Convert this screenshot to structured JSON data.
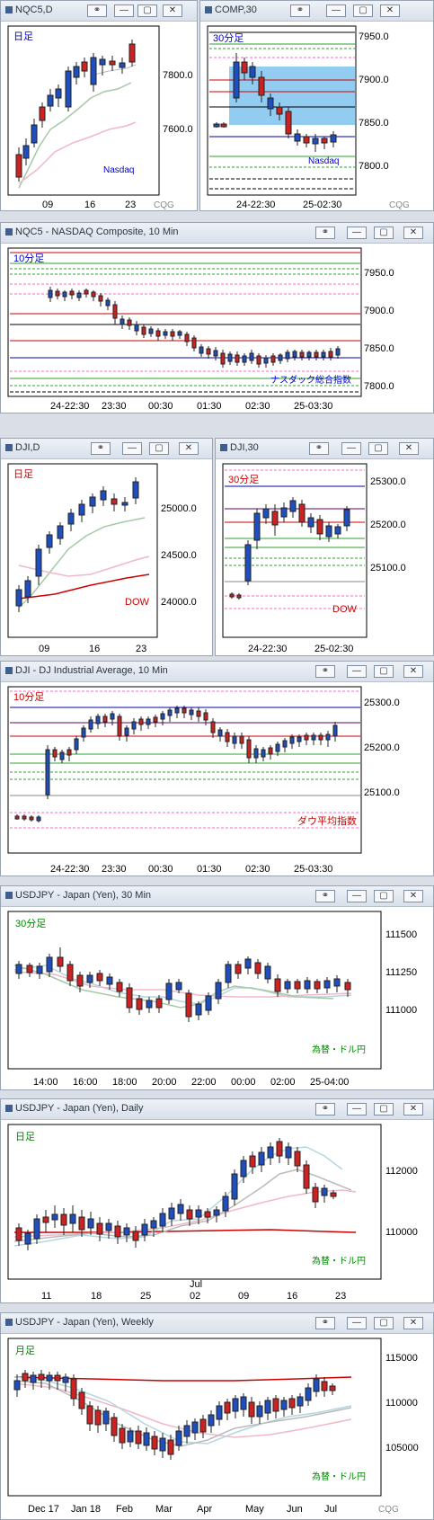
{
  "panels": [
    {
      "id": "nqc5-d",
      "title": "NQC5,D",
      "tag": "日足",
      "tag_color": "#0000cc",
      "corner": "Nasdaq",
      "corner_color": "#0000cc",
      "y_labels": [
        "7800.0",
        "7600.0"
      ],
      "x_labels": [
        "09",
        "16",
        "23"
      ],
      "watermark": "CQG"
    },
    {
      "id": "comp30",
      "title": "COMP,30",
      "tag": "30分足",
      "tag_color": "#0000cc",
      "corner": "Nasdaq",
      "corner_color": "#0000cc",
      "y_labels": [
        "7950.0",
        "7900.0",
        "7850.0",
        "7800.0"
      ],
      "x_labels": [
        "24-22:30",
        "25-02:30"
      ],
      "watermark": "CQG"
    },
    {
      "id": "nqc5-10",
      "title": "NQC5 - NASDAQ Composite, 10 Min",
      "tag": "10分足",
      "tag_color": "#0000cc",
      "corner": "ナスダック総合指数",
      "corner_color": "#0000cc",
      "y_labels": [
        "7950.0",
        "7900.0",
        "7850.0",
        "7800.0"
      ],
      "x_labels": [
        "24-22:30",
        "23:30",
        "00:30",
        "01:30",
        "02:30",
        "25-03:30"
      ]
    },
    {
      "id": "dji-d",
      "title": "DJI,D",
      "tag": "日足",
      "tag_color": "#cc0000",
      "corner": "DOW",
      "corner_color": "#cc0000",
      "y_labels": [
        "25000.0",
        "24500.0",
        "24000.0"
      ],
      "x_labels": [
        "09",
        "16",
        "23"
      ]
    },
    {
      "id": "dji30",
      "title": "DJI,30",
      "tag": "30分足",
      "tag_color": "#cc0000",
      "corner": "DOW",
      "corner_color": "#cc0000",
      "y_labels": [
        "25300.0",
        "25200.0",
        "25100.0"
      ],
      "x_labels": [
        "24-22:30",
        "25-02:30"
      ]
    },
    {
      "id": "dji-10",
      "title": "DJI - DJ Industrial Average, 10 Min",
      "tag": "10分足",
      "tag_color": "#cc0000",
      "corner": "ダウ平均指数",
      "corner_color": "#cc0000",
      "y_labels": [
        "25300.0",
        "25200.0",
        "25100.0"
      ],
      "x_labels": [
        "24-22:30",
        "23:30",
        "00:30",
        "01:30",
        "02:30",
        "25-03:30"
      ]
    },
    {
      "id": "usdjpy-30",
      "title": "USDJPY - Japan (Yen), 30 Min",
      "tag": "30分足",
      "tag_color": "#008800",
      "corner": "為替・ドル円",
      "corner_color": "#008800",
      "y_labels": [
        "111500",
        "111250",
        "111000"
      ],
      "x_labels": [
        "14:00",
        "16:00",
        "18:00",
        "20:00",
        "22:00",
        "00:00",
        "02:00",
        "25-04:00"
      ]
    },
    {
      "id": "usdjpy-d",
      "title": "USDJPY - Japan (Yen), Daily",
      "tag": "日足",
      "tag_color": "#008800",
      "corner": "為替・ドル円",
      "corner_color": "#008800",
      "y_labels": [
        "112000",
        "110000"
      ],
      "x_labels": [
        "11",
        "18",
        "25",
        "02",
        "09",
        "16",
        "23"
      ],
      "x_sub": "Jul"
    },
    {
      "id": "usdjpy-w",
      "title": "USDJPY - Japan (Yen), Weekly",
      "tag": "月足",
      "tag_color": "#008800",
      "corner": "為替・ドル円",
      "corner_color": "#008800",
      "y_labels": [
        "115000",
        "110000",
        "105000"
      ],
      "x_labels": [
        "Dec 17",
        "Jan 18",
        "Feb",
        "Mar",
        "Apr",
        "May",
        "Jun",
        "Jul"
      ],
      "watermark": "CQG"
    }
  ],
  "window_buttons": {
    "link": "⚭",
    "min": "—",
    "max": "▢",
    "close": "✕"
  }
}
